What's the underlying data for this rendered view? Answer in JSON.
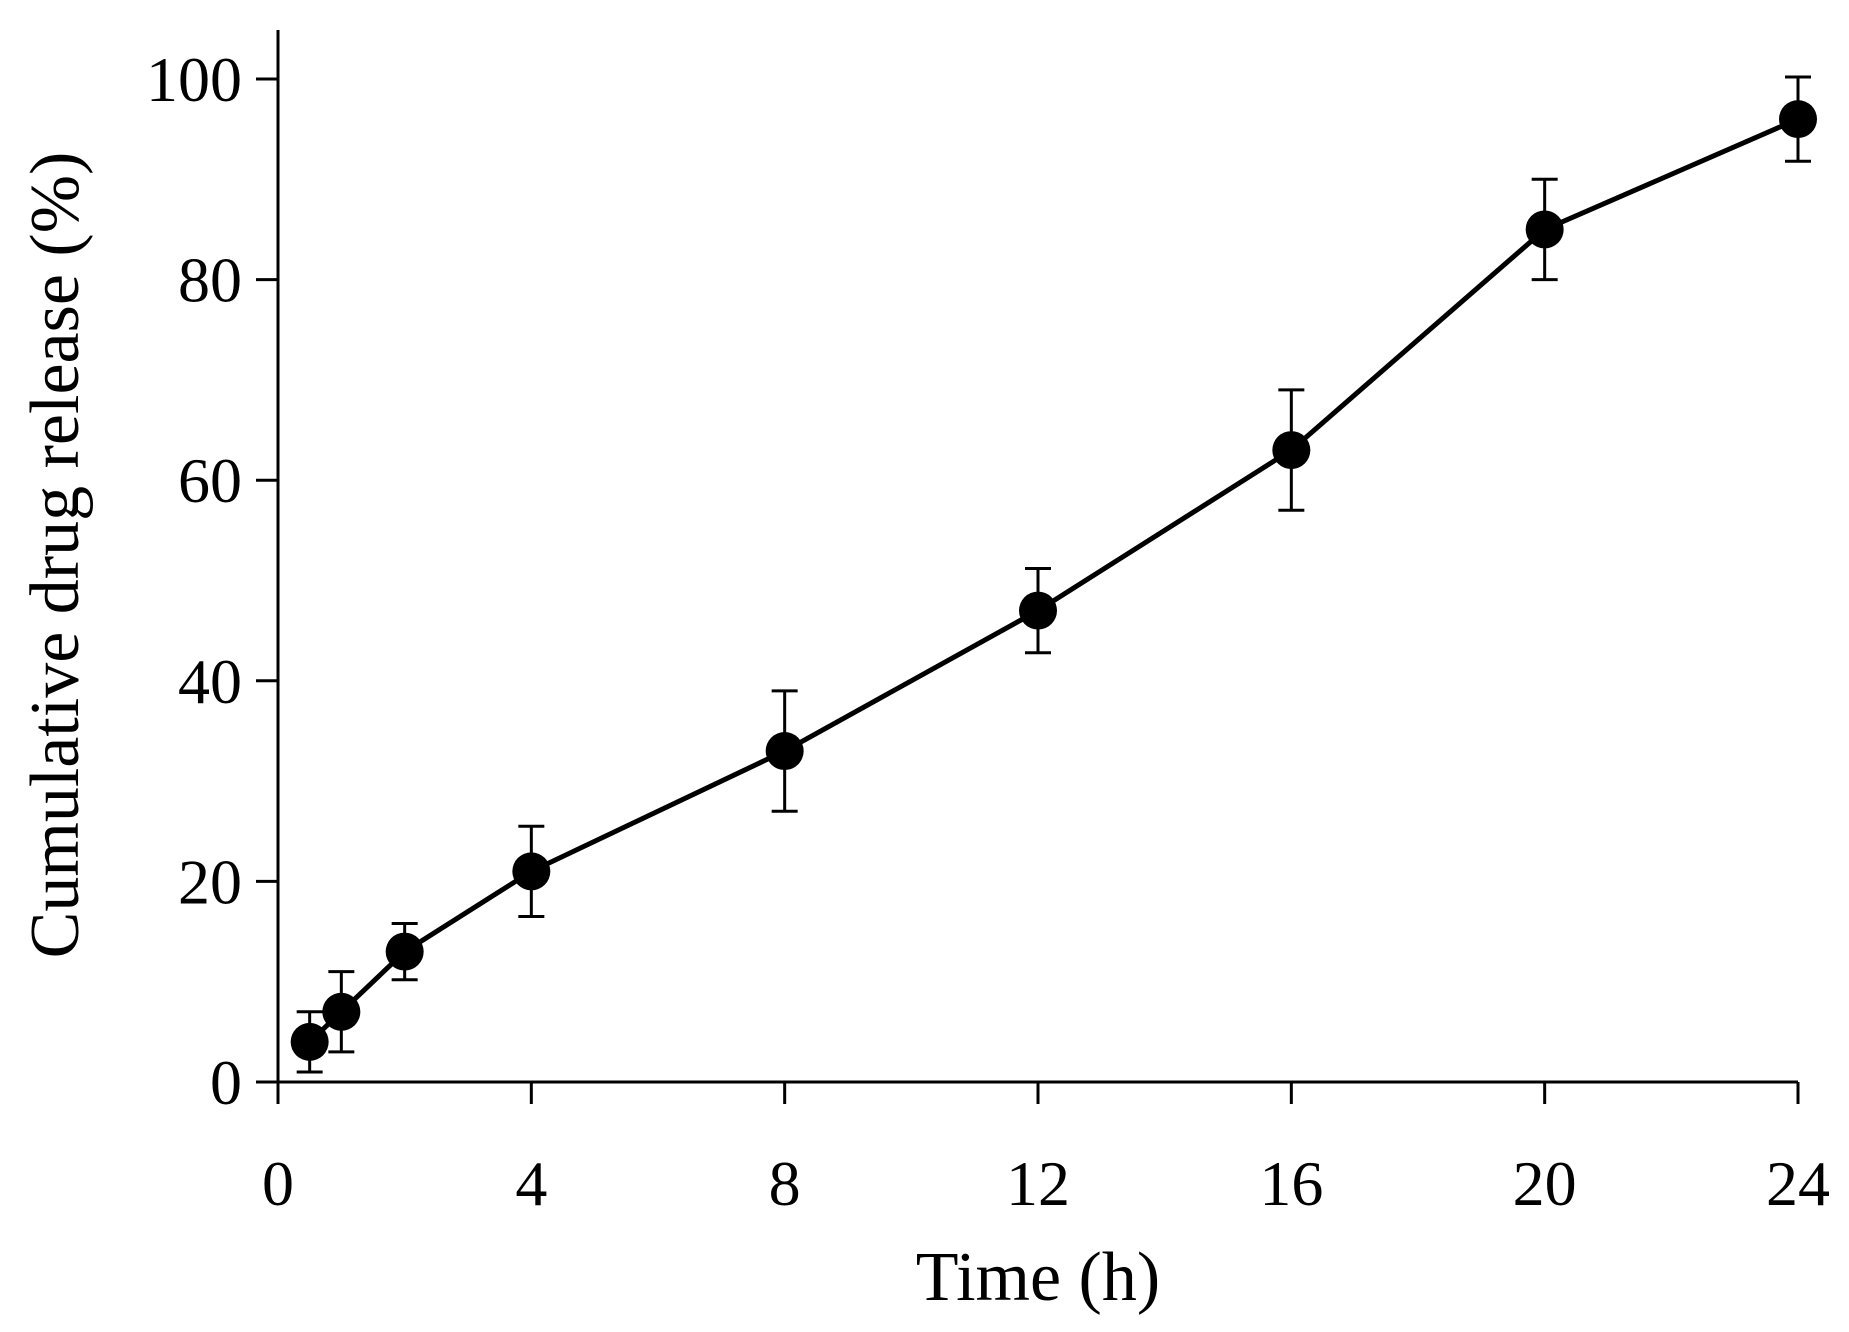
{
  "chart_data": {
    "type": "line",
    "title": "",
    "xlabel": "Time (h)",
    "ylabel": "Cumulative drug release (%)",
    "xlim": [
      0,
      24
    ],
    "ylim": [
      0,
      100
    ],
    "xticks": [
      0,
      4,
      8,
      12,
      16,
      20,
      24
    ],
    "yticks": [
      0,
      20,
      40,
      60,
      80,
      100
    ],
    "grid": false,
    "legend": "none",
    "series": [
      {
        "name": "Cumulative drug release",
        "color": "#000000",
        "marker": "circle",
        "x": [
          0.5,
          1,
          2,
          4,
          8,
          12,
          16,
          20,
          24
        ],
        "y": [
          4,
          7,
          13,
          21,
          33,
          47,
          63,
          85,
          96
        ],
        "error": [
          3,
          4,
          2.8,
          4.5,
          6,
          4.2,
          6,
          5,
          4.2
        ]
      }
    ]
  }
}
